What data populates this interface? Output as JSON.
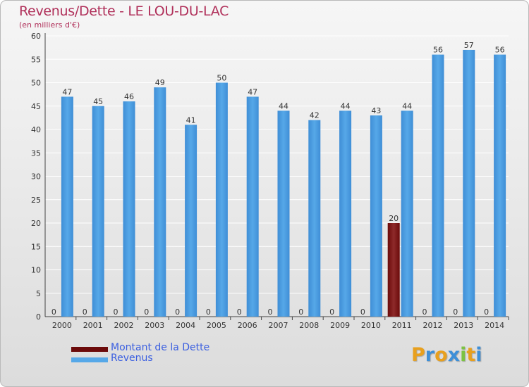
{
  "header": {
    "title": "Revenus/Dette - LE LOU-DU-LAC",
    "subtitle": "(en milliers d'€)"
  },
  "chart_data": {
    "type": "bar",
    "categories": [
      "2000",
      "2001",
      "2002",
      "2003",
      "2004",
      "2005",
      "2006",
      "2007",
      "2008",
      "2009",
      "2010",
      "2011",
      "2012",
      "2013",
      "2014"
    ],
    "series": [
      {
        "name": "Montant de la Dette",
        "color": "#6b0a0a",
        "values": [
          0,
          0,
          0,
          0,
          0,
          0,
          0,
          0,
          0,
          0,
          0,
          20,
          0,
          0,
          0
        ]
      },
      {
        "name": "Revenus",
        "color": "#56a8e8",
        "values": [
          47,
          45,
          46,
          49,
          41,
          50,
          47,
          44,
          42,
          44,
          43,
          44,
          56,
          57,
          56
        ]
      }
    ],
    "ylim": [
      0,
      60
    ],
    "yticks": [
      0,
      5,
      10,
      15,
      20,
      25,
      30,
      35,
      40,
      45,
      50,
      55,
      60
    ],
    "grid": true,
    "legend_position": "bottom-left"
  },
  "legend": {
    "items": [
      {
        "label": "Montant de la Dette",
        "color": "#6b0a0a"
      },
      {
        "label": "Revenus",
        "color": "#56a8e8"
      }
    ]
  },
  "logo": {
    "letters": [
      "P",
      "r",
      "o",
      "x",
      "i",
      "t",
      "i"
    ],
    "colors": [
      "#e8a01e",
      "#3d8fd8",
      "#e8a01e",
      "#3d8fd8",
      "#7cc242",
      "#e8a01e",
      "#3d8fd8"
    ]
  }
}
